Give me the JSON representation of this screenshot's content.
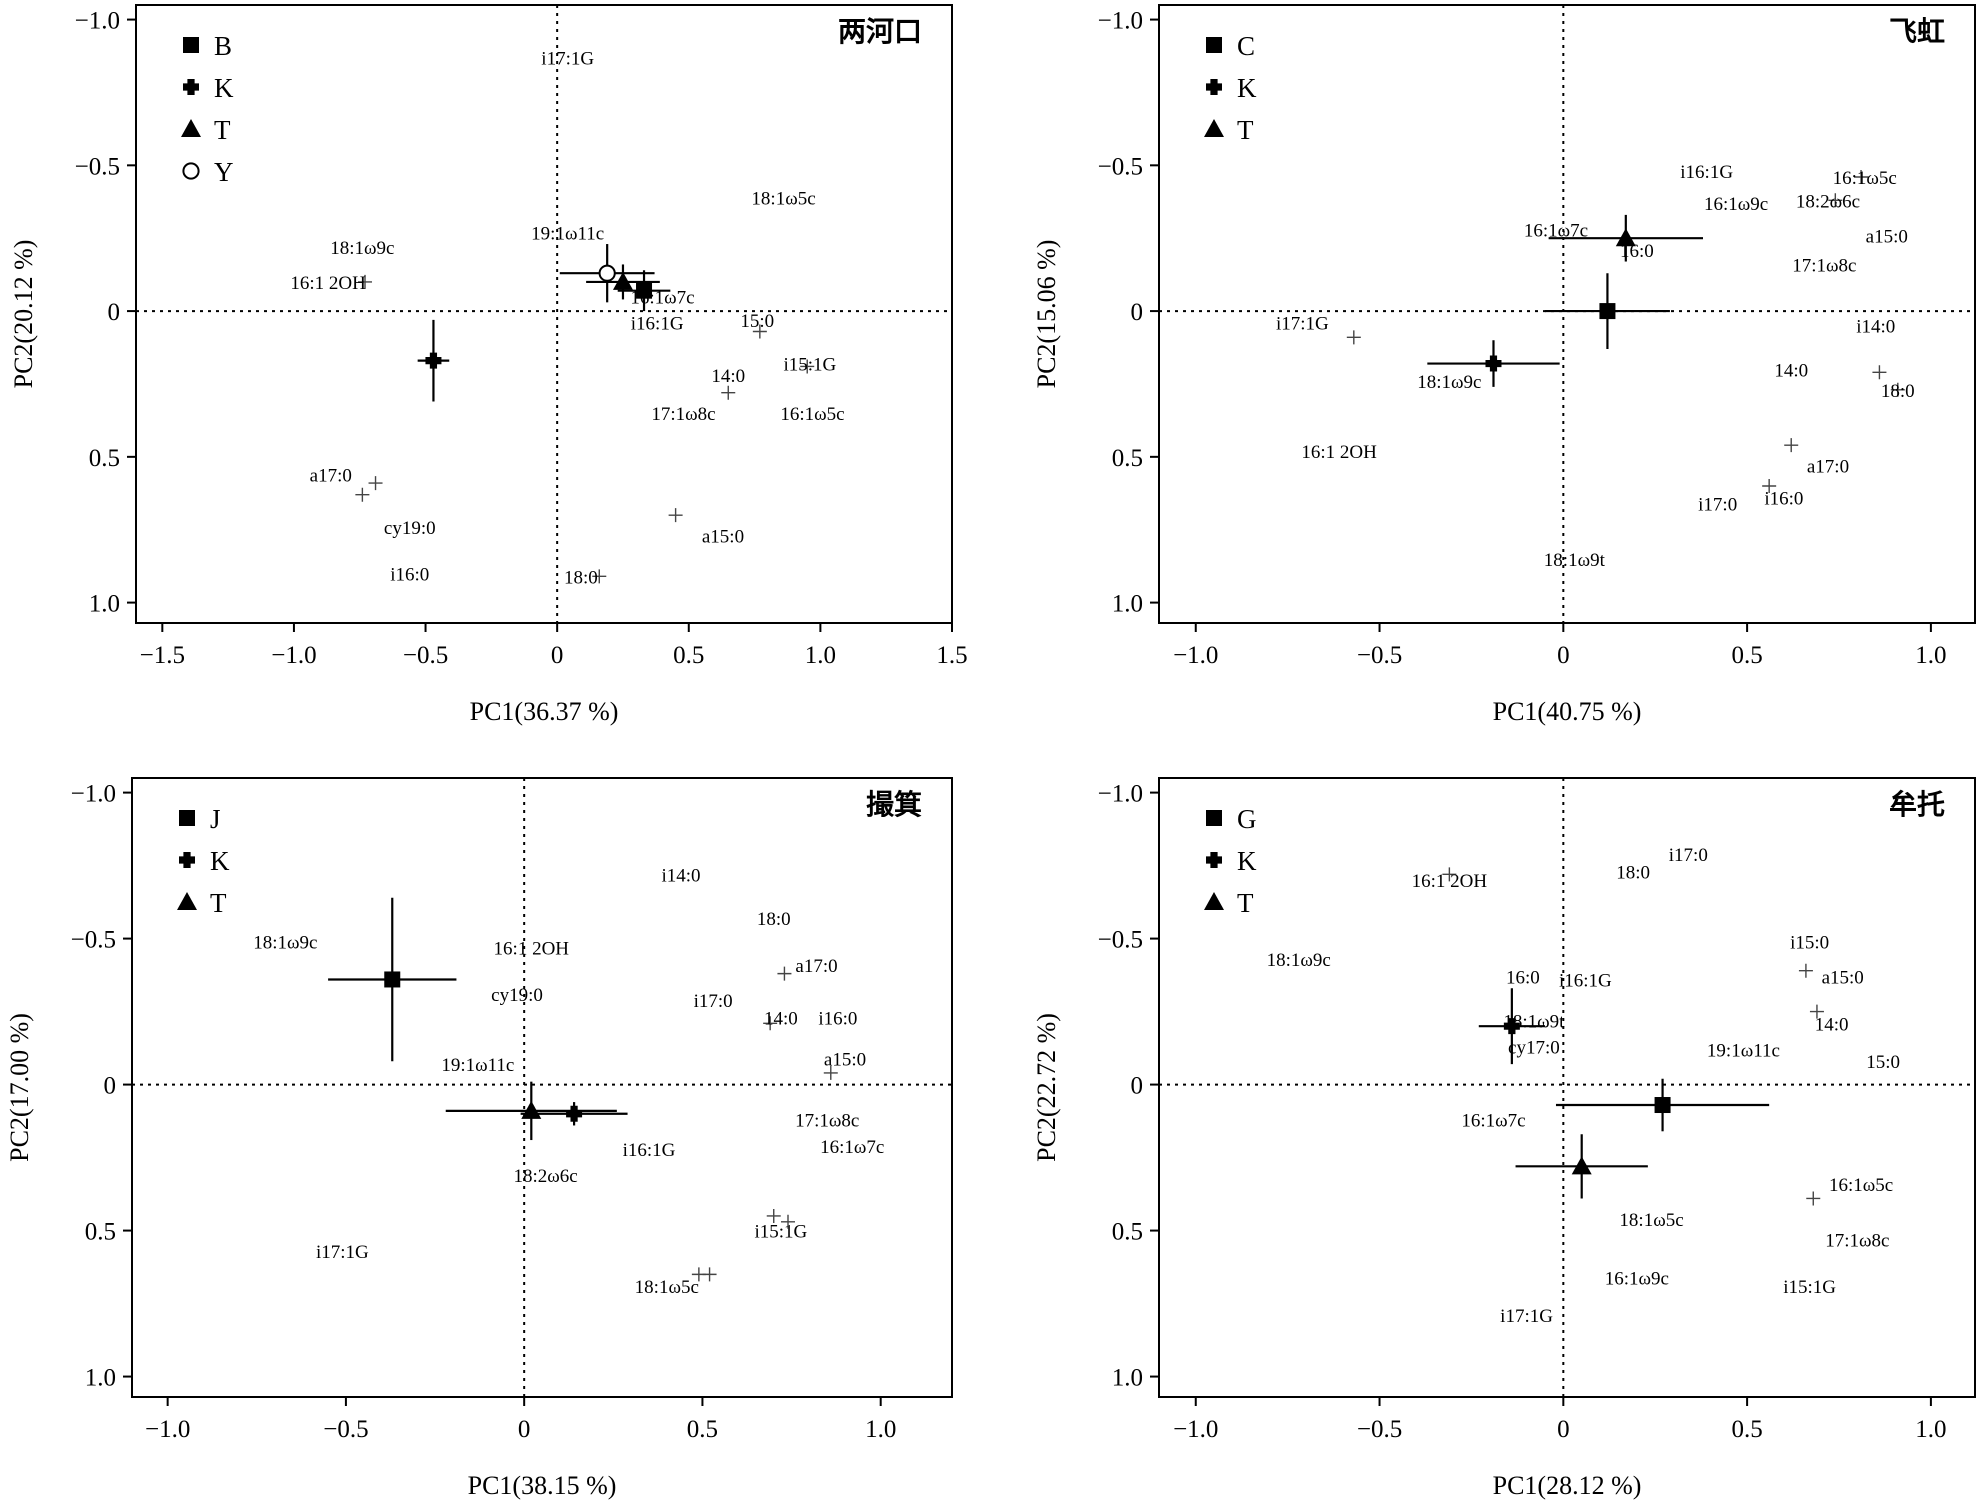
{
  "chart_data": [
    {
      "type": "scatter",
      "title": "两河口",
      "xlabel": "PC1(36.37 %)",
      "ylabel": "PC2(20.12 %)",
      "xlim": [
        -1.6,
        1.5
      ],
      "ylim": [
        -1.05,
        1.07
      ],
      "y_axis_inverted": true,
      "xticks": [
        -1.5,
        -1.0,
        -0.5,
        0,
        0.5,
        1.0,
        1.5
      ],
      "xtick_labels": [
        "−1.5",
        "−1.0",
        "−0.5",
        "0",
        "0.5",
        "1.0",
        "1.5"
      ],
      "yticks": [
        -1.0,
        -0.5,
        0,
        0.5,
        1.0
      ],
      "ytick_labels": [
        "−1.0",
        "−0.5",
        "0",
        "0.5",
        "1.0"
      ],
      "reference_lines": {
        "x": 0,
        "y": 0,
        "style": "dotted"
      },
      "legend": {
        "position": "top-left",
        "entries": [
          {
            "name": "B",
            "marker": "square"
          },
          {
            "name": "K",
            "marker": "cross-dot"
          },
          {
            "name": "T",
            "marker": "triangle"
          },
          {
            "name": "Y",
            "marker": "circle-open"
          }
        ]
      },
      "group_centroids": [
        {
          "name": "B",
          "marker": "square",
          "x": 0.33,
          "y": -0.07,
          "xerr": 0.1,
          "yerr": 0.07
        },
        {
          "name": "K",
          "marker": "cross-dot",
          "x": -0.47,
          "y": 0.17,
          "xerr": 0.06,
          "yerr": 0.14
        },
        {
          "name": "T",
          "marker": "triangle",
          "x": 0.25,
          "y": -0.1,
          "xerr": 0.14,
          "yerr": 0.06
        },
        {
          "name": "Y",
          "marker": "circle-open",
          "x": 0.19,
          "y": -0.13,
          "xerr": 0.18,
          "yerr": 0.1
        }
      ],
      "variables": [
        {
          "label": "i17:1G",
          "x": 0.04,
          "y": -0.87,
          "mark": false
        },
        {
          "label": "18:1ω5c",
          "x": 0.86,
          "y": -0.39,
          "mark": false
        },
        {
          "label": "18:1ω9c",
          "x": -0.74,
          "y": -0.22,
          "mark": false
        },
        {
          "label": "19:1ω11c",
          "x": 0.04,
          "y": -0.27,
          "mark": false
        },
        {
          "label": "16:1 2OH",
          "x": -0.73,
          "y": -0.1,
          "label_x": -0.87,
          "label_y": -0.1,
          "mark": true
        },
        {
          "label": "16:1ω7c",
          "x": 0.4,
          "y": -0.05,
          "mark": false
        },
        {
          "label": "i16:1G",
          "x": 0.38,
          "y": 0.04,
          "mark": false
        },
        {
          "label": "15:0",
          "x": 0.77,
          "y": 0.07,
          "label_x": 0.76,
          "label_y": 0.03,
          "mark": true
        },
        {
          "label": "i15:1G",
          "x": 0.95,
          "y": 0.19,
          "label_x": 0.96,
          "label_y": 0.18,
          "mark": true
        },
        {
          "label": "14:0",
          "x": 0.65,
          "y": 0.28,
          "label_x": 0.65,
          "label_y": 0.22,
          "mark": true
        },
        {
          "label": "17:1ω8c",
          "x": 0.48,
          "y": 0.35,
          "mark": false
        },
        {
          "label": "16:1ω5c",
          "x": 0.97,
          "y": 0.35,
          "mark": false
        },
        {
          "label": "a17:0",
          "x": -0.69,
          "y": 0.59,
          "label_x": -0.86,
          "label_y": 0.56,
          "mark": true
        },
        {
          "label": "",
          "x": -0.74,
          "y": 0.63,
          "mark": true
        },
        {
          "label": "cy19:0",
          "x": -0.56,
          "y": 0.74,
          "mark": false
        },
        {
          "label": "a15:0",
          "x": 0.45,
          "y": 0.7,
          "label_x": 0.63,
          "label_y": 0.77,
          "mark": true
        },
        {
          "label": "i16:0",
          "x": -0.56,
          "y": 0.9,
          "mark": false
        },
        {
          "label": "18:0",
          "x": 0.16,
          "y": 0.91,
          "label_x": 0.09,
          "label_y": 0.91,
          "mark": true
        }
      ]
    },
    {
      "type": "scatter",
      "title": "飞虹",
      "xlabel": "PC1(40.75 %)",
      "ylabel": "PC2(15.06 %)",
      "xlim": [
        -1.1,
        1.12
      ],
      "ylim": [
        -1.05,
        1.07
      ],
      "y_axis_inverted": true,
      "xticks": [
        -1.0,
        -0.5,
        0,
        0.5,
        1.0
      ],
      "xtick_labels": [
        "−1.0",
        "−0.5",
        "0",
        "0.5",
        "1.0"
      ],
      "yticks": [
        -1.0,
        -0.5,
        0,
        0.5,
        1.0
      ],
      "ytick_labels": [
        "−1.0",
        "−0.5",
        "0",
        "0.5",
        "1.0"
      ],
      "reference_lines": {
        "x": 0,
        "y": 0,
        "style": "dotted"
      },
      "legend": {
        "position": "top-left",
        "entries": [
          {
            "name": "C",
            "marker": "square"
          },
          {
            "name": "K",
            "marker": "cross-dot"
          },
          {
            "name": "T",
            "marker": "triangle"
          }
        ]
      },
      "group_centroids": [
        {
          "name": "C",
          "marker": "square",
          "x": 0.12,
          "y": 0.0,
          "xerr": 0.17,
          "yerr": 0.13
        },
        {
          "name": "K",
          "marker": "cross-dot",
          "x": -0.19,
          "y": 0.18,
          "xerr": 0.18,
          "yerr": 0.08
        },
        {
          "name": "T",
          "marker": "triangle",
          "x": 0.17,
          "y": -0.25,
          "xerr": 0.21,
          "yerr": 0.08
        }
      ],
      "variables": [
        {
          "label": "i16:1G",
          "x": 0.39,
          "y": -0.48,
          "mark": false
        },
        {
          "label": "16:1ω5c",
          "x": 0.81,
          "y": -0.46,
          "label_x": 0.82,
          "label_y": -0.46,
          "mark": true
        },
        {
          "label": "16:1ω9c",
          "x": 0.47,
          "y": -0.37,
          "mark": false
        },
        {
          "label": "18:2ω6c",
          "x": 0.74,
          "y": -0.38,
          "label_x": 0.72,
          "label_y": -0.38,
          "mark": true
        },
        {
          "label": "a15:0",
          "x": 0.88,
          "y": -0.26,
          "mark": false
        },
        {
          "label": "16:1ω7c",
          "x": -0.02,
          "y": -0.28,
          "mark": false
        },
        {
          "label": "16:0",
          "x": 0.2,
          "y": -0.21,
          "mark": false
        },
        {
          "label": "17:1ω8c",
          "x": 0.71,
          "y": -0.16,
          "mark": false
        },
        {
          "label": "i17:1G",
          "x": -0.57,
          "y": 0.09,
          "label_x": -0.71,
          "label_y": 0.04,
          "mark": true
        },
        {
          "label": "i14:0",
          "x": 0.85,
          "y": 0.05,
          "mark": false
        },
        {
          "label": "14:0",
          "x": 0.86,
          "y": 0.21,
          "label_x": 0.62,
          "label_y": 0.2,
          "mark": true
        },
        {
          "label": "18:0",
          "x": 0.91,
          "y": 0.27,
          "label_x": 0.91,
          "label_y": 0.27,
          "mark": true
        },
        {
          "label": "18:1ω9c",
          "x": -0.31,
          "y": 0.24,
          "mark": false
        },
        {
          "label": "16:1 2OH",
          "x": -0.61,
          "y": 0.48,
          "mark": false
        },
        {
          "label": "a17:0",
          "x": 0.62,
          "y": 0.46,
          "label_x": 0.72,
          "label_y": 0.53,
          "mark": true
        },
        {
          "label": "i16:0",
          "x": 0.56,
          "y": 0.6,
          "label_x": 0.6,
          "label_y": 0.64,
          "mark": true
        },
        {
          "label": "i17:0",
          "x": 0.42,
          "y": 0.66,
          "mark": false
        },
        {
          "label": "18:1ω9t",
          "x": 0.03,
          "y": 0.85,
          "mark": false
        }
      ]
    },
    {
      "type": "scatter",
      "title": "撮箕",
      "xlabel": "PC1(38.15 %)",
      "ylabel": "PC2(17.00 %)",
      "xlim": [
        -1.1,
        1.2
      ],
      "ylim": [
        -1.05,
        1.07
      ],
      "y_axis_inverted": true,
      "xticks": [
        -1.0,
        -0.5,
        0,
        0.5,
        1.0
      ],
      "xtick_labels": [
        "−1.0",
        "−0.5",
        "0",
        "0.5",
        "1.0"
      ],
      "yticks": [
        -1.0,
        -0.5,
        0,
        0.5,
        1.0
      ],
      "ytick_labels": [
        "−1.0",
        "−0.5",
        "0",
        "0.5",
        "1.0"
      ],
      "reference_lines": {
        "x": 0,
        "y": 0,
        "style": "dotted"
      },
      "legend": {
        "position": "top-left",
        "entries": [
          {
            "name": "J",
            "marker": "square"
          },
          {
            "name": "K",
            "marker": "cross-dot"
          },
          {
            "name": "T",
            "marker": "triangle"
          }
        ]
      },
      "group_centroids": [
        {
          "name": "J",
          "marker": "square",
          "x": -0.37,
          "y": -0.36,
          "xerr": 0.18,
          "yerr": 0.28
        },
        {
          "name": "K",
          "marker": "cross-dot",
          "x": 0.14,
          "y": 0.1,
          "xerr": 0.15,
          "yerr": 0.04
        },
        {
          "name": "T",
          "marker": "triangle",
          "x": 0.02,
          "y": 0.09,
          "xerr": 0.24,
          "yerr": 0.1
        }
      ],
      "variables": [
        {
          "label": "i14:0",
          "x": 0.44,
          "y": -0.72,
          "mark": false
        },
        {
          "label": "18:0",
          "x": 0.7,
          "y": -0.57,
          "mark": false
        },
        {
          "label": "18:1ω9c",
          "x": -0.67,
          "y": -0.49,
          "mark": false
        },
        {
          "label": "16:1 2OH",
          "x": 0.02,
          "y": -0.47,
          "mark": false
        },
        {
          "label": "a17:0",
          "x": 0.73,
          "y": -0.38,
          "label_x": 0.82,
          "label_y": -0.41,
          "mark": true
        },
        {
          "label": "cy19:0",
          "x": -0.02,
          "y": -0.31,
          "mark": false
        },
        {
          "label": "i17:0",
          "x": 0.53,
          "y": -0.29,
          "mark": false
        },
        {
          "label": "14:0",
          "x": 0.69,
          "y": -0.21,
          "label_x": 0.72,
          "label_y": -0.23,
          "mark": true
        },
        {
          "label": "i16:0",
          "x": 0.88,
          "y": -0.23,
          "mark": false
        },
        {
          "label": "19:1ω11c",
          "x": -0.13,
          "y": -0.07,
          "mark": false
        },
        {
          "label": "a15:0",
          "x": 0.86,
          "y": -0.04,
          "label_x": 0.9,
          "label_y": -0.09,
          "mark": true
        },
        {
          "label": "17:1ω8c",
          "x": 0.85,
          "y": 0.12,
          "mark": false
        },
        {
          "label": "16:1ω7c",
          "x": 0.92,
          "y": 0.21,
          "mark": false
        },
        {
          "label": "i16:1G",
          "x": 0.35,
          "y": 0.22,
          "mark": false
        },
        {
          "label": "18:2ω6c",
          "x": 0.06,
          "y": 0.31,
          "mark": false
        },
        {
          "label": "i15:1G",
          "x": 0.7,
          "y": 0.45,
          "label_x": 0.72,
          "label_y": 0.5,
          "mark": true
        },
        {
          "label": "",
          "x": 0.74,
          "y": 0.47,
          "mark": true
        },
        {
          "label": "i17:1G",
          "x": -0.51,
          "y": 0.57,
          "mark": false
        },
        {
          "label": "18:1ω5c",
          "x": 0.49,
          "y": 0.65,
          "label_x": 0.4,
          "label_y": 0.69,
          "mark": true
        },
        {
          "label": "",
          "x": 0.52,
          "y": 0.65,
          "mark": true
        }
      ]
    },
    {
      "type": "scatter",
      "title": "牟托",
      "xlabel": "PC1(28.12 %)",
      "ylabel": "PC2(22.72 %)",
      "xlim": [
        -1.1,
        1.12
      ],
      "ylim": [
        -1.05,
        1.07
      ],
      "y_axis_inverted": true,
      "xticks": [
        -1.0,
        -0.5,
        0,
        0.5,
        1.0
      ],
      "xtick_labels": [
        "−1.0",
        "−0.5",
        "0",
        "0.5",
        "1.0"
      ],
      "yticks": [
        -1.0,
        -0.5,
        0,
        0.5,
        1.0
      ],
      "ytick_labels": [
        "−1.0",
        "−0.5",
        "0",
        "0.5",
        "1.0"
      ],
      "reference_lines": {
        "x": 0,
        "y": 0,
        "style": "dotted"
      },
      "legend": {
        "position": "top-left",
        "entries": [
          {
            "name": "G",
            "marker": "square"
          },
          {
            "name": "K",
            "marker": "cross-dot"
          },
          {
            "name": "T",
            "marker": "triangle"
          }
        ]
      },
      "group_centroids": [
        {
          "name": "G",
          "marker": "square",
          "x": 0.27,
          "y": 0.07,
          "xerr": 0.29,
          "yerr": 0.09
        },
        {
          "name": "K",
          "marker": "cross-dot",
          "x": -0.14,
          "y": -0.2,
          "xerr": 0.09,
          "yerr": 0.13
        },
        {
          "name": "T",
          "marker": "triangle",
          "x": 0.05,
          "y": 0.28,
          "xerr": 0.18,
          "yerr": 0.11
        }
      ],
      "variables": [
        {
          "label": "i17:0",
          "x": 0.34,
          "y": -0.79,
          "mark": false
        },
        {
          "label": "16:1 2OH",
          "x": -0.31,
          "y": -0.72,
          "label_x": -0.31,
          "label_y": -0.7,
          "mark": true
        },
        {
          "label": "18:0",
          "x": 0.19,
          "y": -0.73,
          "mark": false
        },
        {
          "label": "18:1ω9c",
          "x": -0.72,
          "y": -0.43,
          "mark": false
        },
        {
          "label": "i15:0",
          "x": 0.67,
          "y": -0.49,
          "mark": false
        },
        {
          "label": "16:0",
          "x": -0.11,
          "y": -0.37,
          "mark": false
        },
        {
          "label": "i16:1G",
          "x": 0.06,
          "y": -0.36,
          "mark": false
        },
        {
          "label": "a15:0",
          "x": 0.66,
          "y": -0.39,
          "label_x": 0.76,
          "label_y": -0.37,
          "mark": true
        },
        {
          "label": "14:0",
          "x": 0.69,
          "y": -0.25,
          "label_x": 0.73,
          "label_y": -0.21,
          "mark": true
        },
        {
          "label": "18:1ω9t",
          "x": -0.08,
          "y": -0.22,
          "mark": false
        },
        {
          "label": "19:1ω11c",
          "x": 0.49,
          "y": -0.12,
          "mark": false
        },
        {
          "label": "cy17:0",
          "x": -0.08,
          "y": -0.13,
          "mark": false
        },
        {
          "label": "15:0",
          "x": 0.87,
          "y": -0.08,
          "mark": false
        },
        {
          "label": "16:1ω7c",
          "x": -0.19,
          "y": 0.12,
          "mark": false
        },
        {
          "label": "16:1ω5c",
          "x": 0.68,
          "y": 0.39,
          "label_x": 0.81,
          "label_y": 0.34,
          "mark": true
        },
        {
          "label": "18:1ω5c",
          "x": 0.24,
          "y": 0.46,
          "mark": false
        },
        {
          "label": "17:1ω8c",
          "x": 0.8,
          "y": 0.53,
          "mark": false
        },
        {
          "label": "16:1ω9c",
          "x": 0.2,
          "y": 0.66,
          "mark": false
        },
        {
          "label": "i15:1G",
          "x": 0.67,
          "y": 0.69,
          "mark": false
        },
        {
          "label": "i17:1G",
          "x": -0.1,
          "y": 0.79,
          "mark": false
        }
      ]
    }
  ]
}
